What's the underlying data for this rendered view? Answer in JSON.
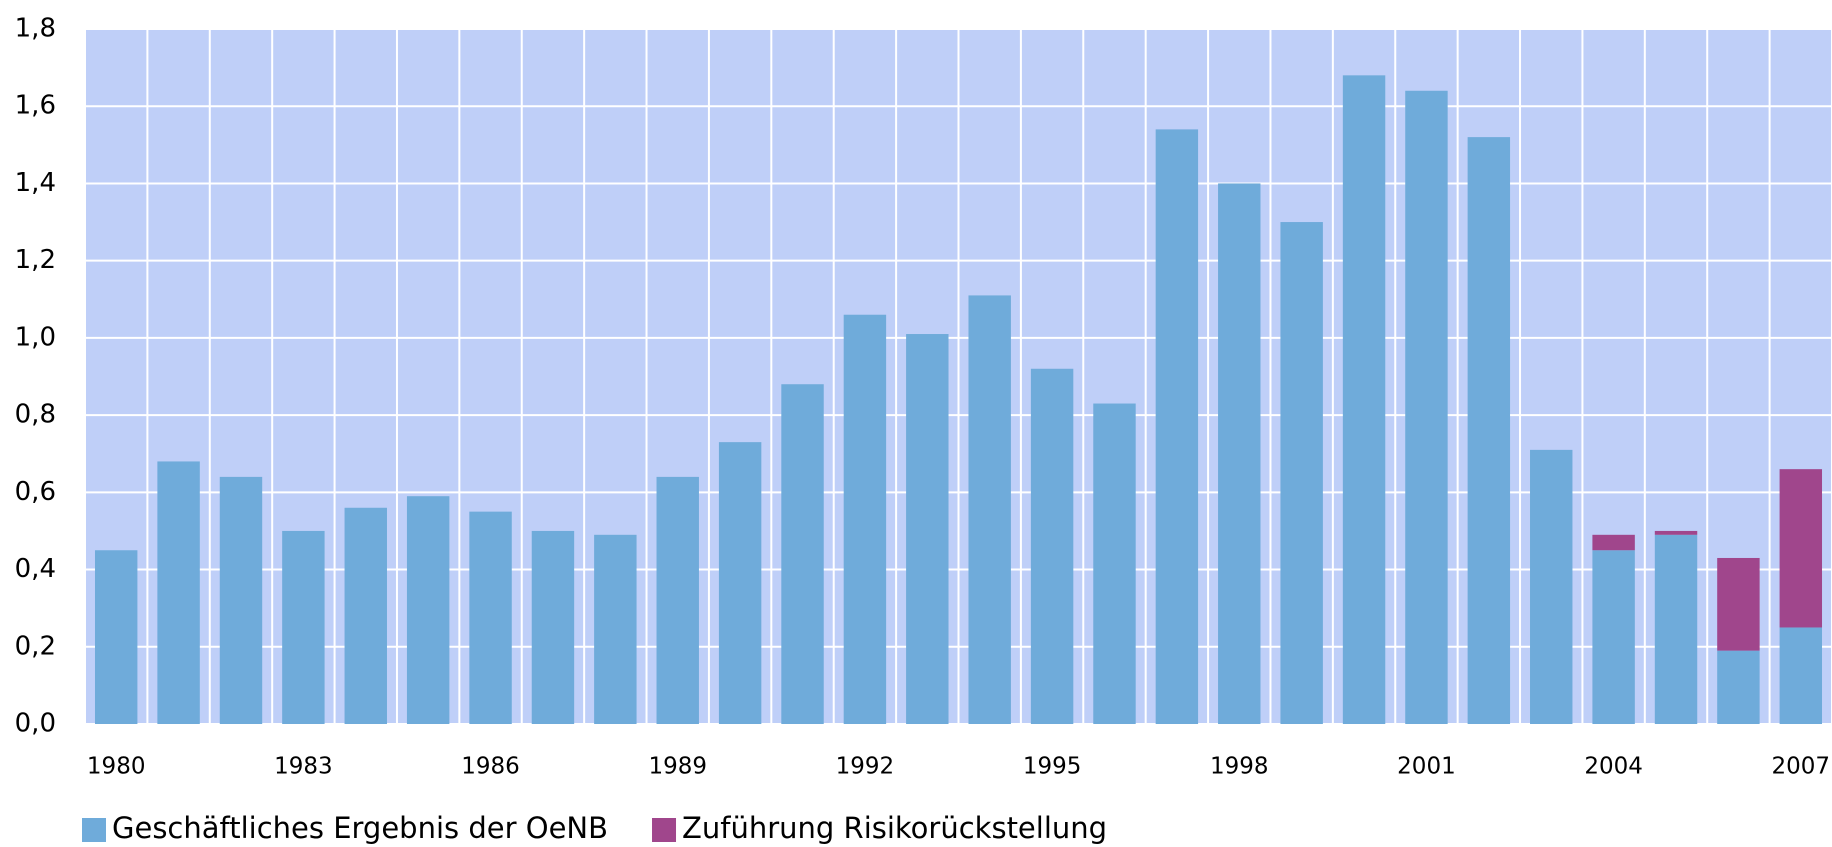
{
  "chart_data": {
    "type": "stacked_bar",
    "categories": [
      "1980",
      null,
      null,
      "1983",
      null,
      null,
      "1986",
      null,
      null,
      "1989",
      null,
      null,
      "1992",
      null,
      null,
      "1995",
      null,
      null,
      "1998",
      null,
      null,
      "2001",
      null,
      null,
      "2004",
      null,
      null,
      "2007"
    ],
    "series": [
      {
        "name": "Geschäftliches Ergebnis der OeNB",
        "color": "#6fabda",
        "values": [
          0.45,
          0.68,
          0.64,
          0.5,
          0.56,
          0.59,
          0.55,
          0.5,
          0.49,
          0.64,
          0.73,
          0.88,
          1.06,
          1.01,
          1.11,
          0.92,
          0.83,
          1.54,
          1.4,
          1.3,
          1.68,
          1.64,
          1.52,
          0.71,
          0.45,
          0.49,
          0.19,
          0.25
        ]
      },
      {
        "name": "Zuführung Risikorückstellung",
        "color": "#a0468c",
        "values": [
          0,
          0,
          0,
          0,
          0,
          0,
          0,
          0,
          0,
          0,
          0,
          0,
          0,
          0,
          0,
          0,
          0,
          0,
          0,
          0,
          0,
          0,
          0,
          0,
          0.04,
          0.01,
          0.24,
          0.41
        ]
      }
    ],
    "ylim": [
      0,
      1.8
    ],
    "yticks": [
      {
        "value": 0,
        "label": "0,0"
      },
      {
        "value": 0.2,
        "label": "0,2"
      },
      {
        "value": 0.4,
        "label": "0,4"
      },
      {
        "value": 0.6,
        "label": "0,6"
      },
      {
        "value": 0.8,
        "label": "0,8"
      },
      {
        "value": 1.0,
        "label": "1,0"
      },
      {
        "value": 1.2,
        "label": "1,2"
      },
      {
        "value": 1.4,
        "label": "1,4"
      },
      {
        "value": 1.6,
        "label": "1,6"
      },
      {
        "value": 1.8,
        "label": "1,8"
      }
    ],
    "grid": true,
    "background": "#bfcff8",
    "legend": "bottom-left"
  }
}
